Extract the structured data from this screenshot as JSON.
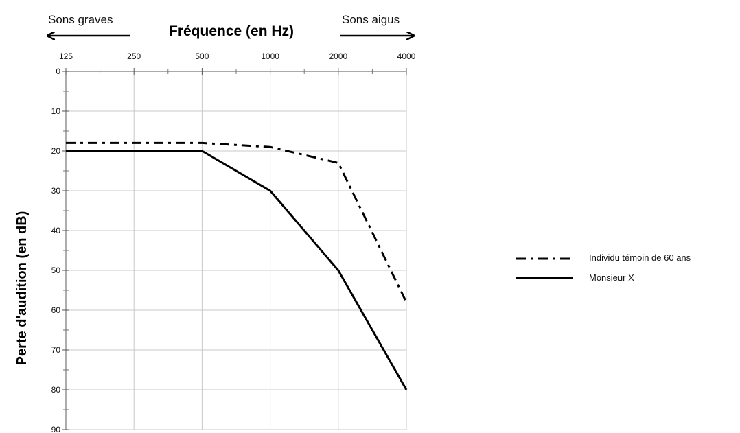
{
  "chart_data": {
    "type": "line",
    "title": "Fréquence (en Hz)",
    "xlabel": "Fréquence (en Hz)",
    "ylabel": "Perte d'audition (en dB)",
    "x_scale": "log2",
    "x_ticks": [
      125,
      250,
      500,
      1000,
      2000,
      4000
    ],
    "x_tick_labels": [
      "125",
      "250",
      "500",
      "1000",
      "2000",
      "4000"
    ],
    "xlim": [
      125,
      4000
    ],
    "ylim": [
      0,
      90
    ],
    "y_inverted": true,
    "y_ticks": [
      0,
      10,
      20,
      30,
      40,
      50,
      60,
      70,
      80,
      90
    ],
    "y_tick_labels": [
      "0",
      "10",
      "20",
      "30",
      "40",
      "50",
      "60",
      "70",
      "80",
      "90"
    ],
    "grid": true,
    "annotations": {
      "left": "Sons graves",
      "right": "Sons aigus"
    },
    "legend_position": "right",
    "series": [
      {
        "name": "Individu témoin de 60 ans",
        "style": "dash-dot",
        "color": "#000000",
        "x": [
          125,
          500,
          1000,
          2000,
          4000
        ],
        "y": [
          18,
          18,
          19,
          23,
          58
        ]
      },
      {
        "name": "Monsieur X",
        "style": "solid",
        "color": "#000000",
        "x": [
          125,
          500,
          1000,
          2000,
          4000
        ],
        "y": [
          20,
          20,
          30,
          50,
          80
        ]
      }
    ]
  }
}
